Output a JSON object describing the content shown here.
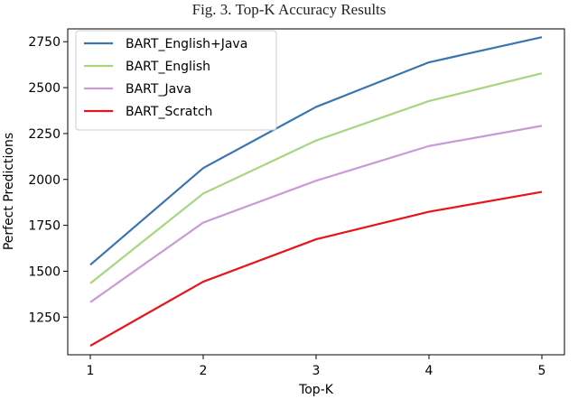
{
  "caption": "Fig. 3.   Top-K Accuracy Results",
  "chart_data": {
    "type": "line",
    "title": "",
    "xlabel": "Top-K",
    "ylabel": "Perfect Predictions",
    "x": [
      1,
      2,
      3,
      4,
      5
    ],
    "xticks": [
      "1",
      "2",
      "3",
      "4",
      "5"
    ],
    "yticks": [
      "1250",
      "1500",
      "1750",
      "2000",
      "2250",
      "2500",
      "2750"
    ],
    "xlim": [
      0.8,
      5.2
    ],
    "ylim": [
      1045,
      2820
    ],
    "grid": false,
    "legend_position": "top-left",
    "series": [
      {
        "name": "BART_English+Java",
        "color": "#3a75b0",
        "values": [
          1535,
          2062,
          2395,
          2638,
          2775
        ]
      },
      {
        "name": "BART_English",
        "color": "#a6d67e",
        "values": [
          1434,
          1923,
          2212,
          2427,
          2578
        ]
      },
      {
        "name": "BART_Java",
        "color": "#c99bd6",
        "values": [
          1331,
          1765,
          1993,
          2182,
          2292
        ]
      },
      {
        "name": "BART_Scratch",
        "color": "#e8141a",
        "values": [
          1094,
          1443,
          1674,
          1824,
          1932
        ]
      }
    ]
  }
}
